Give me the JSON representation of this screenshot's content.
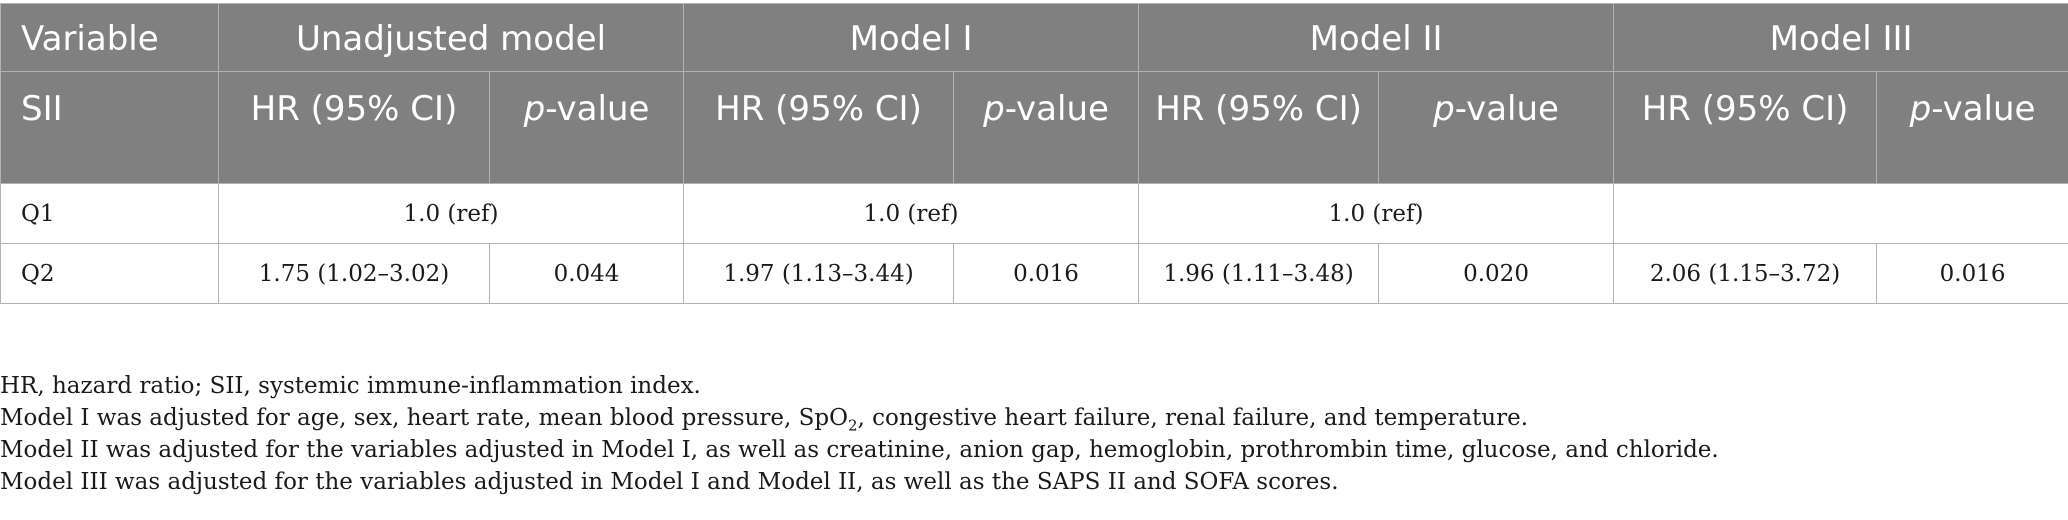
{
  "table": {
    "header_row1": {
      "variable": "Variable",
      "unadjusted": "Unadjusted model",
      "model1": "Model I",
      "model2": "Model II",
      "model3": "Model III"
    },
    "header_row2": {
      "sii": "SII",
      "hr_label": "HR (95% CI)",
      "p_prefix": "p",
      "p_suffix": "-value"
    },
    "rows": [
      {
        "label": "Q1",
        "unadjusted": "1.0 (ref)",
        "model1": "1.0 (ref)",
        "model2": "1.0 (ref)",
        "model3": ""
      },
      {
        "label": "Q2",
        "unadjusted_hr": "1.75 (1.02–3.02)",
        "unadjusted_p": "0.044",
        "model1_hr": "1.97 (1.13–3.44)",
        "model1_p": "0.016",
        "model2_hr": "1.96 (1.11–3.48)",
        "model2_p": "0.020",
        "model3_hr": "2.06 (1.15–3.72)",
        "model3_p": "0.016"
      }
    ]
  },
  "notes": {
    "abbrev": "HR, hazard ratio; SII, systemic immune-inflammation index.",
    "model1_pre": "Model I was adjusted for age, sex, heart rate, mean blood pressure, SpO",
    "model1_sub": "2",
    "model1_post": ", congestive heart failure, renal failure, and temperature.",
    "model2": "Model II was adjusted for the variables adjusted in Model I, as well as creatinine, anion gap, hemoglobin, prothrombin time, glucose, and chloride.",
    "model3": "Model III was adjusted for the variables adjusted in Model I and Model II, as well as the SAPS II and SOFA scores."
  }
}
